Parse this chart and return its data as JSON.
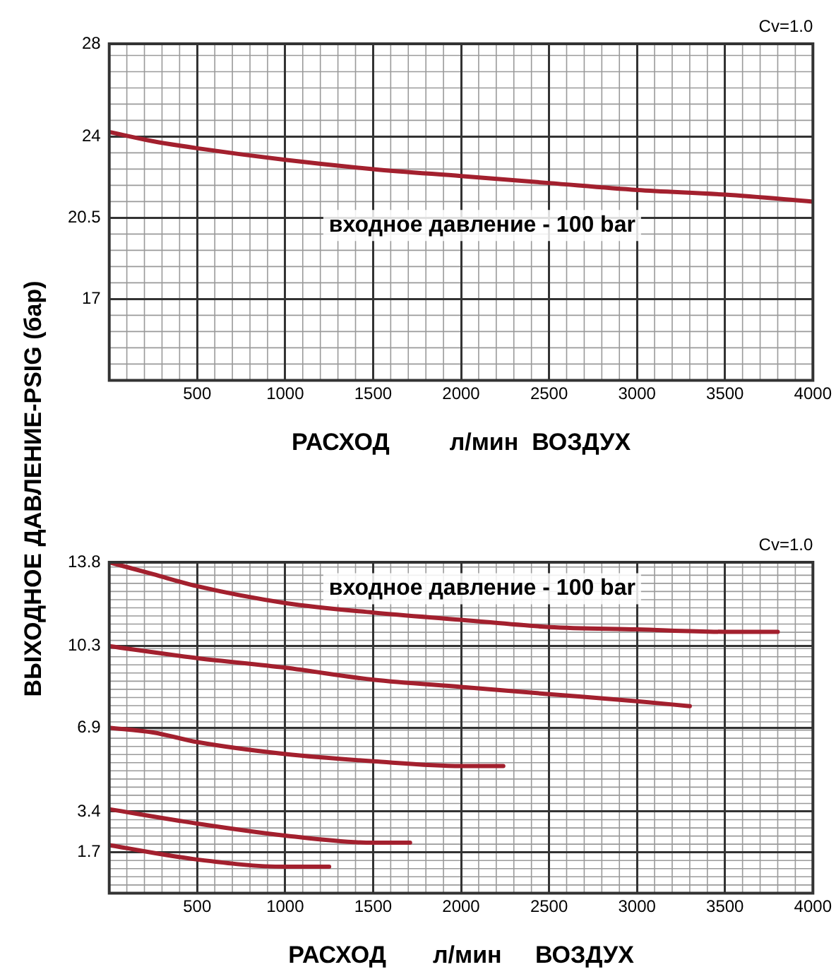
{
  "chart_data": [
    {
      "type": "line",
      "ylabel": "ВЫХОДНОЕ ДАВЛЕНИЕ-PSIG (бар)",
      "xlabel": "РАСХОД         л/мин  ВОЗДУХ",
      "annotations": [
        "Cv=1.0",
        "входное давление - 100 bar"
      ],
      "xlim": [
        0,
        4000
      ],
      "xticks": [
        500,
        1000,
        1500,
        2000,
        2500,
        3000,
        3500,
        4000
      ],
      "ylim": [
        13.5,
        28
      ],
      "yticks": [
        28,
        24,
        20.5,
        17
      ],
      "grid": true,
      "legend": false,
      "marker": "none",
      "line_style": "solid",
      "series": [
        {
          "color": "#a3202e",
          "x": [
            0,
            250,
            500,
            1000,
            1500,
            2000,
            2500,
            3000,
            3500,
            4000
          ],
          "values": [
            24.2,
            23.8,
            23.5,
            23.0,
            22.6,
            22.3,
            22.0,
            21.7,
            21.5,
            21.2
          ]
        }
      ]
    },
    {
      "type": "line",
      "xlabel": "РАСХОД       л/мин     ВОЗДУХ",
      "annotations": [
        "Cv=1.0",
        "входное давление - 100 bar"
      ],
      "xlim": [
        0,
        4000
      ],
      "xticks": [
        500,
        1000,
        1500,
        2000,
        2500,
        3000,
        3500,
        4000
      ],
      "ylim": [
        0,
        13.8
      ],
      "yticks": [
        13.8,
        10.3,
        6.9,
        3.4,
        1.7
      ],
      "grid": true,
      "legend": false,
      "marker": "none",
      "line_style": "solid",
      "series": [
        {
          "color": "#a3202e",
          "x": [
            0,
            250,
            500,
            1000,
            1500,
            2000,
            2500,
            3000,
            3500,
            3800
          ],
          "values": [
            13.8,
            13.3,
            12.8,
            12.1,
            11.7,
            11.4,
            11.1,
            11.0,
            10.9,
            10.9
          ]
        },
        {
          "color": "#a3202e",
          "x": [
            0,
            500,
            1000,
            1500,
            2000,
            2500,
            3000,
            3300
          ],
          "values": [
            10.3,
            9.8,
            9.4,
            8.9,
            8.6,
            8.3,
            8.0,
            7.8
          ]
        },
        {
          "color": "#a3202e",
          "x": [
            0,
            250,
            500,
            1000,
            1500,
            2000,
            2240
          ],
          "values": [
            6.9,
            6.7,
            6.3,
            5.8,
            5.5,
            5.3,
            5.3
          ]
        },
        {
          "color": "#a3202e",
          "x": [
            0,
            500,
            1000,
            1500,
            1710
          ],
          "values": [
            3.5,
            2.9,
            2.4,
            2.1,
            2.1
          ]
        },
        {
          "color": "#a3202e",
          "x": [
            0,
            500,
            1000,
            1250
          ],
          "values": [
            2.0,
            1.4,
            1.1,
            1.1
          ]
        }
      ]
    }
  ]
}
